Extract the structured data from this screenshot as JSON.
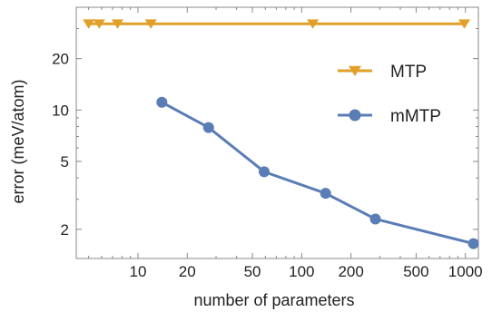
{
  "chart_data": {
    "type": "line",
    "xlabel": "number of parameters",
    "ylabel": "error (meV/atom)",
    "xscale": "log",
    "yscale": "log",
    "xlim": [
      4.2,
      1200
    ],
    "ylim": [
      1.35,
      40
    ],
    "x_ticks": [
      10,
      20,
      50,
      100,
      200,
      500,
      1000
    ],
    "x_tick_labels": [
      "10",
      "20",
      "50",
      "100",
      "200",
      "500",
      "1000"
    ],
    "y_ticks": [
      2,
      5,
      10,
      20
    ],
    "y_tick_labels": [
      "2",
      "5",
      "10",
      "20"
    ],
    "grid": false,
    "legend_position": "top-right",
    "series": [
      {
        "name": "MTP",
        "color": "#e0a02a",
        "marker": "triangle-down",
        "x": [
          5,
          5.8,
          7.5,
          12,
          117,
          985
        ],
        "y": [
          32,
          32,
          32,
          32,
          32,
          32
        ]
      },
      {
        "name": "mMTP",
        "color": "#5a7db5",
        "marker": "circle",
        "x": [
          14,
          27,
          59,
          140,
          282,
          1120
        ],
        "y": [
          11.1,
          7.9,
          4.35,
          3.25,
          2.3,
          1.65
        ]
      }
    ]
  }
}
